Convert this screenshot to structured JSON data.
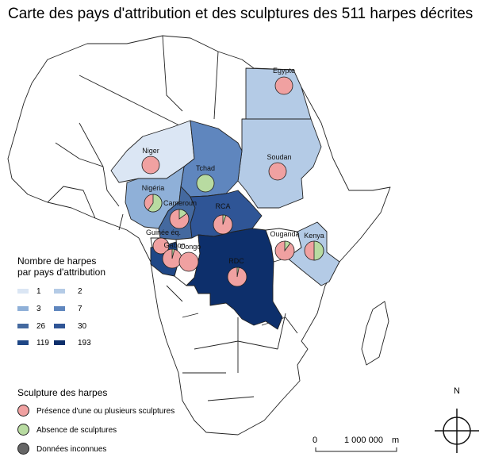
{
  "title": "Carte des pays d'attribution et des sculptures des 511 harpes décrites",
  "colors": {
    "land": "#ffffff",
    "border": "#222222",
    "c1": "#dbe6f4",
    "c2": "#b4cbe6",
    "c3": "#8fb0d8",
    "c7": "#5f86be",
    "c26": "#44699f",
    "c30": "#2f5596",
    "c119": "#1f4786",
    "c193": "#0d2f6b",
    "presence": "#f0a1a1",
    "absence": "#b8dba1",
    "unknown": "#666666"
  },
  "countries": [
    {
      "name": "Egypte",
      "harps": 2,
      "pie_absence": 0
    },
    {
      "name": "Soudan",
      "harps": 2,
      "pie_absence": 0
    },
    {
      "name": "Niger",
      "harps": 1,
      "pie_absence": 0
    },
    {
      "name": "Tchad",
      "harps": 7,
      "pie_absence": 1
    },
    {
      "name": "Nigéria",
      "harps": 3,
      "pie_absence": 0.6
    },
    {
      "name": "Cameroun",
      "harps": 26,
      "pie_absence": 0.15
    },
    {
      "name": "RCA",
      "harps": 30,
      "pie_absence": 0.05
    },
    {
      "name": "Guinée éq.",
      "harps": 0,
      "pie_absence": 0
    },
    {
      "name": "Gabon",
      "harps": 119,
      "pie_absence": 0.04
    },
    {
      "name": "Congo",
      "harps": 0,
      "pie_absence": 0
    },
    {
      "name": "RDC",
      "harps": 193,
      "pie_absence": 0.03
    },
    {
      "name": "Ouganda",
      "harps": 0,
      "pie_absence": 0.1
    },
    {
      "name": "Kenya",
      "harps": 2,
      "pie_absence": 0.5
    }
  ],
  "legend_fill": {
    "title_line1": "Nombre de harpes",
    "title_line2": "par pays d'attribution",
    "classes": [
      "1",
      "2",
      "3",
      "7",
      "26",
      "30",
      "119",
      "193"
    ]
  },
  "legend_pie": {
    "title": "Sculpture des harpes",
    "presence": "Présence d'une ou plusieurs sculptures",
    "absence": "Absence de sculptures",
    "unknown": "Données inconnues"
  },
  "scale": {
    "zero": "0",
    "distance": "1 000 000",
    "unit": "m"
  },
  "north_label": "N"
}
